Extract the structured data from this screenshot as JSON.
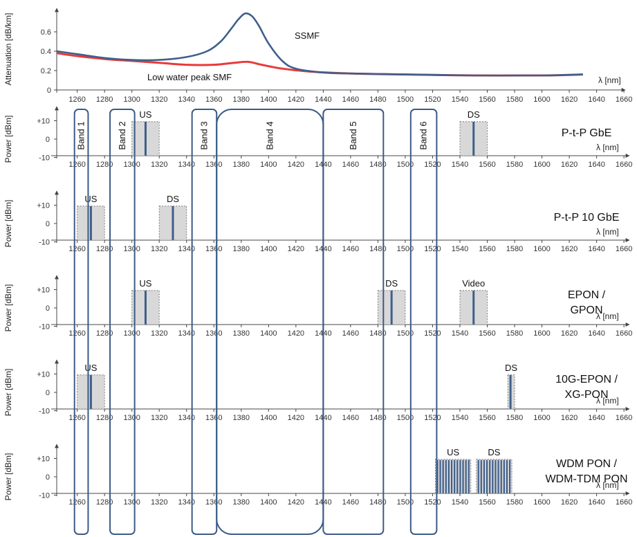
{
  "chart_data": [
    {
      "type": "line",
      "ylabel": "Attenuation [dB/km]",
      "xlabel": "λ [nm]",
      "xlim": [
        1245,
        1665
      ],
      "ylim": [
        0,
        0.8
      ],
      "yticks": [
        "0",
        "0.2",
        "0.4",
        "0.6"
      ],
      "xticks": [
        "1260",
        "1280",
        "1300",
        "1320",
        "1340",
        "1360",
        "1380",
        "1400",
        "1420",
        "1440",
        "1460",
        "1480",
        "1500",
        "1520",
        "1540",
        "1560",
        "1580",
        "1600",
        "1620",
        "1640",
        "1660"
      ],
      "series": [
        {
          "name": "SSMF",
          "color": "#3f5f8a",
          "x": [
            1245,
            1260,
            1280,
            1300,
            1320,
            1340,
            1355,
            1365,
            1372,
            1378,
            1383,
            1388,
            1393,
            1400,
            1410,
            1420,
            1440,
            1460,
            1500,
            1550,
            1600,
            1630
          ],
          "y": [
            0.4,
            0.37,
            0.33,
            0.31,
            0.31,
            0.34,
            0.4,
            0.5,
            0.62,
            0.73,
            0.79,
            0.76,
            0.66,
            0.48,
            0.3,
            0.22,
            0.18,
            0.17,
            0.16,
            0.15,
            0.15,
            0.16
          ]
        },
        {
          "name": "Low water peak SMF",
          "color": "#e83a3a",
          "x": [
            1245,
            1260,
            1280,
            1300,
            1320,
            1340,
            1360,
            1375,
            1385,
            1395,
            1410,
            1430,
            1460,
            1500,
            1550,
            1600,
            1630
          ],
          "y": [
            0.38,
            0.35,
            0.32,
            0.3,
            0.28,
            0.26,
            0.26,
            0.28,
            0.29,
            0.26,
            0.22,
            0.19,
            0.17,
            0.16,
            0.15,
            0.15,
            0.16
          ]
        }
      ],
      "annotations": [
        "SSMF",
        "Low water peak SMF"
      ]
    },
    {
      "type": "bands",
      "bands": [
        {
          "name": "Band 1",
          "lo": 1258,
          "hi": 1268
        },
        {
          "name": "Band 2",
          "lo": 1284,
          "hi": 1302
        },
        {
          "name": "Band 3",
          "lo": 1344,
          "hi": 1362
        },
        {
          "name": "Band 4",
          "lo": 1362,
          "hi": 1440
        },
        {
          "name": "Band 5",
          "lo": 1440,
          "hi": 1484
        },
        {
          "name": "Band 6",
          "lo": 1504,
          "hi": 1523
        }
      ]
    }
  ],
  "power_axis": {
    "ylabel": "Power [dBm]",
    "yticks": [
      "+10",
      "0",
      "-10"
    ],
    "xunit": "λ [nm]"
  },
  "panels": [
    {
      "title": [
        "P-t-P GbE"
      ],
      "signals": [
        {
          "label": "US",
          "lo": 1300,
          "hi": 1320,
          "center": 1310,
          "type": "single"
        },
        {
          "label": "DS",
          "lo": 1540,
          "hi": 1560,
          "center": 1550,
          "type": "single"
        }
      ]
    },
    {
      "title": [
        "P-t-P 10 GbE"
      ],
      "signals": [
        {
          "label": "US",
          "lo": 1260,
          "hi": 1280,
          "center": 1270,
          "type": "single"
        },
        {
          "label": "DS",
          "lo": 1320,
          "hi": 1340,
          "center": 1330,
          "type": "single"
        }
      ]
    },
    {
      "title": [
        "EPON /",
        "GPON"
      ],
      "signals": [
        {
          "label": "US",
          "lo": 1300,
          "hi": 1320,
          "center": 1310,
          "type": "single"
        },
        {
          "label": "DS",
          "lo": 1480,
          "hi": 1500,
          "center": 1490,
          "type": "single"
        },
        {
          "label": "Video",
          "lo": 1540,
          "hi": 1560,
          "center": 1550,
          "type": "single"
        }
      ]
    },
    {
      "title": [
        "10G-EPON /",
        "XG-PON"
      ],
      "signals": [
        {
          "label": "US",
          "lo": 1260,
          "hi": 1280,
          "center": 1270,
          "type": "single"
        },
        {
          "label": "DS",
          "lo": 1575,
          "hi": 1580,
          "center": 1577,
          "type": "single"
        }
      ]
    },
    {
      "title": [
        "WDM PON /",
        "WDM-TDM PON"
      ],
      "signals": [
        {
          "label": "US",
          "lo": 1522,
          "hi": 1548,
          "center": 1535,
          "type": "comb"
        },
        {
          "label": "DS",
          "lo": 1552,
          "hi": 1578,
          "center": 1565,
          "type": "comb"
        }
      ]
    }
  ]
}
